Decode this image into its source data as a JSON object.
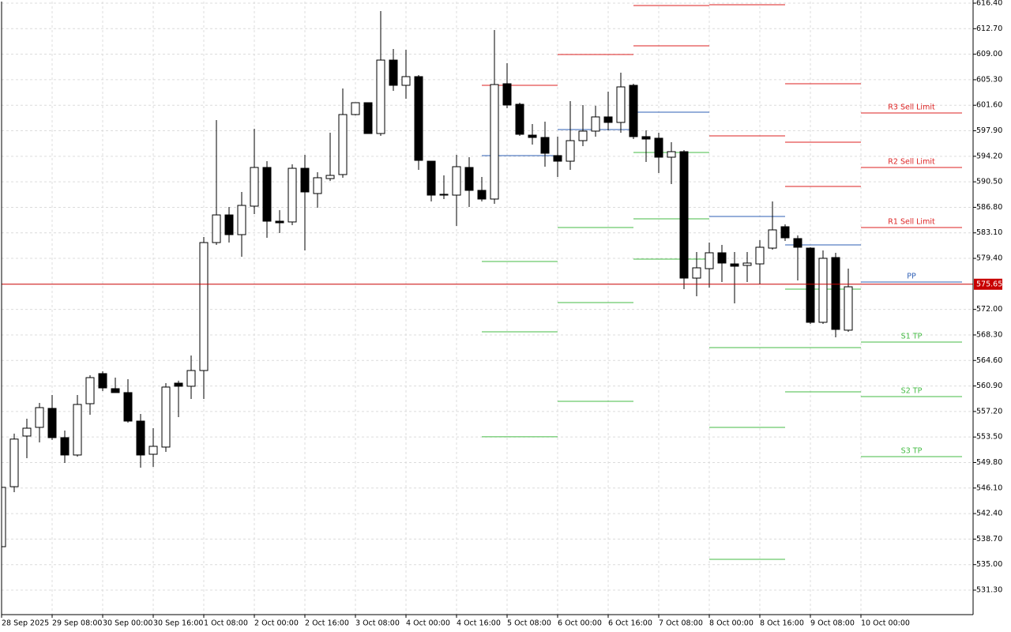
{
  "chart_data": {
    "type": "candlestick",
    "categories": [
      "28 Sep 2025",
      null,
      null,
      null,
      "29 Sep 08:00",
      null,
      null,
      null,
      "30 Sep 00:00",
      null,
      null,
      null,
      "30 Sep 16:00",
      null,
      null,
      null,
      "1 Oct 08:00",
      null,
      null,
      null,
      "2 Oct 00:00",
      null,
      null,
      null,
      "2 Oct 16:00",
      null,
      null,
      null,
      "3 Oct 08:00",
      null,
      null,
      null,
      "4 Oct 00:00",
      null,
      null,
      null,
      "4 Oct 16:00",
      null,
      null,
      null,
      "5 Oct 08:00",
      null,
      null,
      null,
      "6 Oct 00:00",
      null,
      null,
      null,
      "6 Oct 16:00",
      null,
      null,
      null,
      "7 Oct 08:00",
      null,
      null,
      null,
      "8 Oct 00:00",
      null,
      null,
      null,
      "8 Oct 16:00",
      null,
      null,
      null,
      "9 Oct 08:00",
      null,
      null,
      null,
      "10 Oct 00:00"
    ],
    "open": [
      537.6,
      546.3,
      553.64,
      554.9,
      557.65,
      553.41,
      550.89,
      558.33,
      562.69,
      560.51,
      559.94,
      555.81,
      551.0,
      552.04,
      561.31,
      560.86,
      563.14,
      581.69,
      585.7,
      582.84,
      586.97,
      592.58,
      584.79,
      584.68,
      592.46,
      588.8,
      590.97,
      591.55,
      600.25,
      601.97,
      597.5,
      608.15,
      604.49,
      605.75,
      593.49,
      588.69,
      588.57,
      592.58,
      589.26,
      588.0,
      604.72,
      601.74,
      597.27,
      596.93,
      594.3,
      593.49,
      596.47,
      597.85,
      599.91,
      599.11,
      604.49,
      597.05,
      596.82,
      594.07,
      594.87,
      576.54,
      577.91,
      580.21,
      578.6,
      578.38,
      578.6,
      580.89,
      583.99,
      582.27,
      580.89,
      570.13,
      579.52,
      568.99,
      null
    ],
    "high": [
      546.2,
      554.0,
      556.16,
      558.45,
      559.59,
      554.44,
      559.59,
      562.46,
      563.03,
      562.11,
      561.88,
      556.84,
      554.78,
      561.31,
      561.66,
      565.32,
      582.5,
      599.45,
      586.85,
      589.03,
      598.19,
      593.49,
      586.39,
      593.04,
      594.41,
      591.89,
      597.61,
      604.03,
      601.97,
      601.97,
      615.25,
      609.76,
      609.64,
      605.98,
      593.49,
      591.43,
      594.41,
      594.07,
      591.2,
      612.51,
      607.7,
      601.97,
      598.88,
      599.22,
      597.05,
      602.2,
      601.63,
      601.52,
      603.57,
      606.32,
      604.72,
      597.96,
      597.62,
      596.24,
      595.1,
      580.32,
      581.69,
      581.35,
      580.32,
      580.32,
      582.04,
      587.65,
      584.33,
      582.73,
      581.01,
      580.55,
      580.21,
      577.92,
      null
    ],
    "low": [
      537.6,
      545.5,
      550.43,
      552.72,
      553.07,
      549.74,
      550.66,
      556.73,
      560.17,
      559.94,
      555.58,
      549.06,
      549.17,
      551.35,
      556.39,
      559.02,
      559.02,
      581.35,
      581.69,
      579.63,
      585.82,
      582.38,
      583.07,
      584.22,
      580.55,
      586.74,
      590.63,
      591.09,
      600.14,
      597.5,
      597.16,
      603.69,
      602.54,
      592.23,
      587.65,
      588.0,
      584.1,
      586.85,
      587.65,
      587.31,
      601.17,
      597.16,
      595.9,
      592.69,
      591.2,
      592.23,
      595.67,
      597.05,
      597.96,
      597.62,
      596.7,
      593.38,
      591.78,
      590.17,
      574.94,
      573.91,
      575.17,
      575.97,
      572.88,
      575.97,
      575.63,
      580.67,
      581.93,
      576.2,
      569.9,
      569.9,
      567.95,
      568.76,
      null
    ],
    "close": [
      546.2,
      553.2,
      554.78,
      557.76,
      553.41,
      550.89,
      558.22,
      562.11,
      560.62,
      559.94,
      555.81,
      550.89,
      552.15,
      560.74,
      560.86,
      563.14,
      581.69,
      585.7,
      582.84,
      587.08,
      592.58,
      584.79,
      584.56,
      592.46,
      589.03,
      591.09,
      591.43,
      600.25,
      601.97,
      597.5,
      608.15,
      604.49,
      605.75,
      593.61,
      588.57,
      588.57,
      592.69,
      589.26,
      588.0,
      604.6,
      601.63,
      597.39,
      596.93,
      594.64,
      593.49,
      596.47,
      597.85,
      599.91,
      599.11,
      604.26,
      597.05,
      596.7,
      594.07,
      594.87,
      576.54,
      578.03,
      580.21,
      578.72,
      578.26,
      578.72,
      581.01,
      583.53,
      582.38,
      581.01,
      570.13,
      579.41,
      569.1,
      575.28,
      null
    ],
    "up_color": "#ffffff",
    "down_color": "#000000",
    "wick_color": "#000000",
    "ylim": [
      527.75,
      616.63
    ],
    "yticks": [
      {
        "value": 616.4,
        "label": "616.40"
      },
      {
        "value": 612.7,
        "label": "612.70"
      },
      {
        "value": 609.0,
        "label": "609.00"
      },
      {
        "value": 605.3,
        "label": "605.30"
      },
      {
        "value": 601.6,
        "label": "601.60"
      },
      {
        "value": 597.9,
        "label": "597.90"
      },
      {
        "value": 594.2,
        "label": "594.20"
      },
      {
        "value": 590.5,
        "label": "590.50"
      },
      {
        "value": 586.8,
        "label": "586.80"
      },
      {
        "value": 583.1,
        "label": "583.10"
      },
      {
        "value": 579.4,
        "label": "579.40"
      },
      {
        "value": 572.0,
        "label": "572.00"
      },
      {
        "value": 568.3,
        "label": "568.30"
      },
      {
        "value": 564.6,
        "label": "564.60"
      },
      {
        "value": 560.9,
        "label": "560.90"
      },
      {
        "value": 557.2,
        "label": "557.20"
      },
      {
        "value": 553.5,
        "label": "553.50"
      },
      {
        "value": 549.8,
        "label": "549.80"
      },
      {
        "value": 546.1,
        "label": "546.10"
      },
      {
        "value": 542.4,
        "label": "542.40"
      },
      {
        "value": 538.7,
        "label": "538.70"
      },
      {
        "value": 535.0,
        "label": "535.00"
      },
      {
        "value": 531.3,
        "label": "531.30"
      }
    ],
    "grid": true,
    "last_price": {
      "value": 575.65,
      "color": "#c80000"
    },
    "pivot_levels": [
      [
        {
          "value": 604.49,
          "color": "#dd2222"
        },
        {
          "value": 594.3,
          "color": "#2e5fb5"
        },
        {
          "value": 578.95,
          "color": "#44bb44"
        },
        {
          "value": 568.76,
          "color": "#44bb44"
        },
        {
          "value": 553.53,
          "color": "#44bb44"
        }
      ],
      [
        {
          "value": 608.96,
          "color": "#dd2222"
        },
        {
          "value": 598.07,
          "color": "#2e5fb5"
        },
        {
          "value": 583.87,
          "color": "#44bb44"
        },
        {
          "value": 572.99,
          "color": "#44bb44"
        },
        {
          "value": 558.68,
          "color": "#44bb44"
        }
      ],
      [
        {
          "value": 616.06,
          "color": "#dd2222"
        },
        {
          "value": 610.22,
          "color": "#dd2222"
        },
        {
          "value": 600.59,
          "color": "#2e5fb5"
        },
        {
          "value": 594.75,
          "color": "#44bb44"
        },
        {
          "value": 585.13,
          "color": "#44bb44"
        },
        {
          "value": 579.29,
          "color": "#44bb44"
        }
      ],
      [
        {
          "value": 616.17,
          "color": "#dd2222"
        },
        {
          "value": 597.16,
          "color": "#dd2222"
        },
        {
          "value": 585.48,
          "color": "#2e5fb5"
        },
        {
          "value": 566.47,
          "color": "#44bb44"
        },
        {
          "value": 554.9,
          "color": "#44bb44"
        },
        {
          "value": 535.77,
          "color": "#44bb44"
        }
      ],
      [
        {
          "value": 604.72,
          "color": "#dd2222"
        },
        {
          "value": 596.24,
          "color": "#dd2222"
        },
        {
          "value": 589.83,
          "color": "#dd2222"
        },
        {
          "value": 581.35,
          "color": "#2e5fb5"
        },
        {
          "value": 574.94,
          "color": "#44bb44"
        },
        {
          "value": 566.47,
          "color": "#44bb44"
        },
        {
          "value": 560.05,
          "color": "#44bb44"
        }
      ],
      [
        {
          "value": 600.48,
          "color": "#dd2222",
          "label": "R3 Sell Limit"
        },
        {
          "value": 592.58,
          "color": "#dd2222",
          "label": "R2 Sell Limit"
        },
        {
          "value": 583.87,
          "color": "#dd2222",
          "label": "R1 Sell Limit"
        },
        {
          "value": 575.97,
          "color": "#2e5fb5",
          "label": "PP"
        },
        {
          "value": 567.27,
          "color": "#44bb44",
          "label": "S1 TP"
        },
        {
          "value": 559.36,
          "color": "#44bb44",
          "label": "S2 TP"
        },
        {
          "value": 550.66,
          "color": "#44bb44",
          "label": "S3 TP"
        }
      ]
    ]
  }
}
